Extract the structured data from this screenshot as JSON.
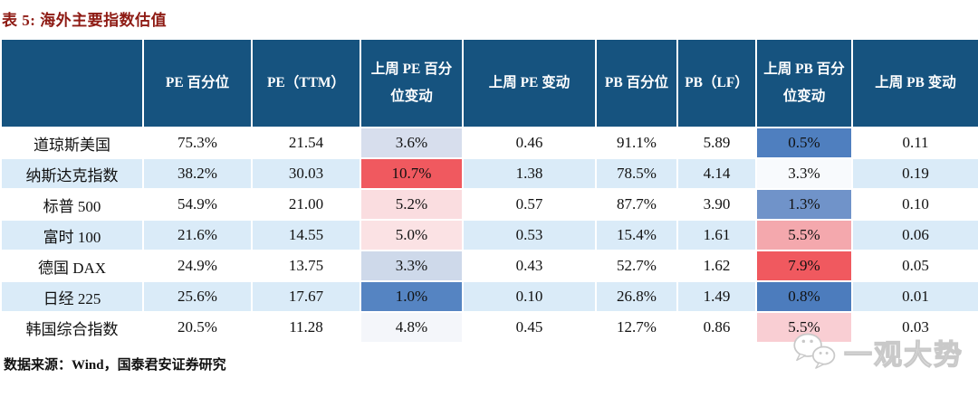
{
  "title": "表 5:  海外主要指数估值",
  "source": "数据来源：Wind，国泰君安证券研究",
  "watermark": {
    "label": "一观大势",
    "icon": "wechat-icon"
  },
  "colors": {
    "title_color": "#8E1B14",
    "header_bg": "#16537F",
    "header_text": "#FFFFFF",
    "stripe_bg": "#DAEBF8",
    "heat_red_strong": "#F0595F",
    "heat_blue_strong": "#4F7FBF"
  },
  "table": {
    "columns": [
      "",
      "PE 百分位",
      "PE（TTM）",
      "上周 PE 百分位变动",
      "上周 PE 变动",
      "PB 百分位",
      "PB（LF）",
      "上周 PB 百分位变动",
      "上周 PB 变动"
    ],
    "rows": [
      {
        "name": "道琼斯美国",
        "cells": [
          "75.3%",
          "21.54",
          "3.6%",
          "0.46",
          "91.1%",
          "5.89",
          "0.5%",
          "0.11"
        ],
        "pe_chg_bg": "#D7DEED",
        "pb_chg_bg": "#4F7FBF"
      },
      {
        "name": "纳斯达克指数",
        "cells": [
          "38.2%",
          "30.03",
          "10.7%",
          "1.38",
          "78.5%",
          "4.14",
          "3.3%",
          "0.19"
        ],
        "pe_chg_bg": "#F0595F",
        "pb_chg_bg": "#F8FAFD"
      },
      {
        "name": "标普 500",
        "cells": [
          "54.9%",
          "21.00",
          "5.2%",
          "0.57",
          "87.7%",
          "3.90",
          "1.3%",
          "0.10"
        ],
        "pe_chg_bg": "#FADDE0",
        "pb_chg_bg": "#7093C9"
      },
      {
        "name": "富时 100",
        "cells": [
          "21.6%",
          "14.55",
          "5.0%",
          "0.53",
          "15.4%",
          "1.61",
          "5.5%",
          "0.06"
        ],
        "pe_chg_bg": "#FBE2E4",
        "pb_chg_bg": "#F4A8AD"
      },
      {
        "name": "德国 DAX",
        "cells": [
          "24.9%",
          "13.75",
          "3.3%",
          "0.43",
          "52.7%",
          "1.62",
          "7.9%",
          "0.05"
        ],
        "pe_chg_bg": "#CED9EA",
        "pb_chg_bg": "#F0595F"
      },
      {
        "name": "日经 225",
        "cells": [
          "25.6%",
          "17.67",
          "1.0%",
          "0.10",
          "26.8%",
          "1.49",
          "0.8%",
          "0.01"
        ],
        "pe_chg_bg": "#5584C2",
        "pb_chg_bg": "#4C7CBD"
      },
      {
        "name": "韩国综合指数",
        "cells": [
          "20.5%",
          "11.28",
          "4.8%",
          "0.45",
          "12.7%",
          "0.86",
          "5.5%",
          "0.03"
        ],
        "pe_chg_bg": "#F4F6FA",
        "pb_chg_bg": "#F9CED3"
      }
    ]
  }
}
